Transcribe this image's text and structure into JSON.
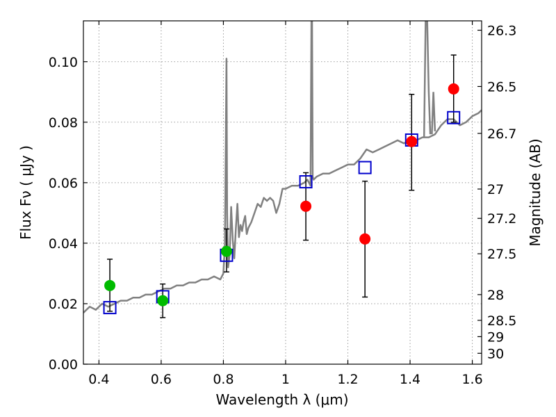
{
  "chart_data": {
    "type": "scatter",
    "xlabel": "Wavelength  λ (μm)",
    "ylabel": "Flux  Fν  ( μJy )",
    "ylabel_right": "Magnitude (AB)",
    "xlim": [
      0.35,
      1.63
    ],
    "ylim": [
      0.0,
      0.1135
    ],
    "grid": true,
    "x_ticks": [
      0.4,
      0.6,
      0.8,
      1.0,
      1.2,
      1.4,
      1.6
    ],
    "x_tick_labels": [
      "0.4",
      "0.6",
      "0.8",
      "1",
      "1.2",
      "1.4",
      "1.6"
    ],
    "y_ticks": [
      0.0,
      0.02,
      0.04,
      0.06,
      0.08,
      0.1
    ],
    "y_tick_labels": [
      "0.00",
      "0.02",
      "0.04",
      "0.06",
      "0.08",
      "0.10"
    ],
    "right_ticks": [
      {
        "label": "26.3",
        "flux": 0.1104
      },
      {
        "label": "26.5",
        "flux": 0.0918
      },
      {
        "label": "26.7",
        "flux": 0.0763
      },
      {
        "label": "27",
        "flux": 0.0579
      },
      {
        "label": "27.2",
        "flux": 0.0482
      },
      {
        "label": "27.5",
        "flux": 0.0365
      },
      {
        "label": "28",
        "flux": 0.023
      },
      {
        "label": "28.5",
        "flux": 0.0145
      },
      {
        "label": "29",
        "flux": 0.0091
      },
      {
        "label": "30",
        "flux": 0.0036
      }
    ],
    "colors": {
      "spectrum": "#808080",
      "model_squares": "#0000cc",
      "observed_red": "#ff0000",
      "observed_green": "#00bb00",
      "errorbar": "#000000",
      "grid": "#999999"
    },
    "spectrum": {
      "x": [
        0.35,
        0.37,
        0.39,
        0.41,
        0.43,
        0.45,
        0.47,
        0.49,
        0.51,
        0.53,
        0.55,
        0.57,
        0.59,
        0.61,
        0.63,
        0.65,
        0.67,
        0.69,
        0.71,
        0.73,
        0.75,
        0.77,
        0.79,
        0.8,
        0.805,
        0.81,
        0.812,
        0.815,
        0.82,
        0.825,
        0.83,
        0.835,
        0.84,
        0.845,
        0.85,
        0.855,
        0.86,
        0.865,
        0.87,
        0.875,
        0.88,
        0.89,
        0.9,
        0.91,
        0.92,
        0.93,
        0.94,
        0.95,
        0.96,
        0.97,
        0.98,
        0.99,
        1.0,
        1.02,
        1.04,
        1.06,
        1.07,
        1.08,
        1.083,
        1.085,
        1.087,
        1.09,
        1.1,
        1.12,
        1.14,
        1.16,
        1.18,
        1.2,
        1.22,
        1.24,
        1.26,
        1.28,
        1.3,
        1.32,
        1.34,
        1.36,
        1.38,
        1.4,
        1.42,
        1.44,
        1.46,
        1.48,
        1.5,
        1.52,
        1.54,
        1.56,
        1.58,
        1.6,
        1.62,
        1.63
      ],
      "y": [
        0.017,
        0.019,
        0.018,
        0.02,
        0.019,
        0.02,
        0.021,
        0.021,
        0.022,
        0.022,
        0.023,
        0.023,
        0.024,
        0.025,
        0.025,
        0.026,
        0.026,
        0.027,
        0.027,
        0.028,
        0.028,
        0.029,
        0.028,
        0.03,
        0.04,
        0.101,
        0.05,
        0.032,
        0.036,
        0.052,
        0.041,
        0.035,
        0.045,
        0.053,
        0.042,
        0.046,
        0.044,
        0.047,
        0.049,
        0.043,
        0.045,
        0.047,
        0.05,
        0.053,
        0.052,
        0.055,
        0.054,
        0.055,
        0.054,
        0.05,
        0.053,
        0.058,
        0.058,
        0.059,
        0.059,
        0.06,
        0.061,
        0.059,
        0.1135,
        0.1135,
        0.062,
        0.061,
        0.062,
        0.063,
        0.063,
        0.064,
        0.065,
        0.066,
        0.066,
        0.068,
        0.071,
        0.07,
        0.071,
        0.072,
        0.073,
        0.074,
        0.073,
        0.074,
        0.074,
        0.075,
        0.075,
        0.076,
        0.079,
        0.081,
        0.081,
        0.079,
        0.08,
        0.082,
        0.083,
        0.084
      ]
    },
    "spectrum_extra_peaks": [
      {
        "x": [
          1.445,
          1.45,
          1.455,
          1.46,
          1.465
        ],
        "y": [
          0.075,
          0.1135,
          0.1135,
          0.09,
          0.076
        ]
      },
      {
        "x": [
          1.47,
          1.475,
          1.48
        ],
        "y": [
          0.076,
          0.09,
          0.077
        ]
      }
    ],
    "model_points": {
      "x": [
        0.435,
        0.605,
        0.81,
        1.065,
        1.255,
        1.405,
        1.54
      ],
      "y": [
        0.0187,
        0.0223,
        0.036,
        0.0603,
        0.065,
        0.0741,
        0.0815
      ]
    },
    "observed_points": [
      {
        "x": 0.435,
        "y": 0.026,
        "err": [
          0.0175,
          0.0347
        ],
        "color": "green"
      },
      {
        "x": 0.605,
        "y": 0.021,
        "err": [
          0.0154,
          0.0265
        ],
        "color": "green"
      },
      {
        "x": 0.81,
        "y": 0.0373,
        "err": [
          0.0305,
          0.0447
        ],
        "color": "green"
      },
      {
        "x": 1.065,
        "y": 0.0522,
        "err": [
          0.041,
          0.0633
        ],
        "color": "red"
      },
      {
        "x": 1.255,
        "y": 0.0414,
        "err": [
          0.0222,
          0.0605
        ],
        "color": "red"
      },
      {
        "x": 1.405,
        "y": 0.0736,
        "err": [
          0.0575,
          0.0892
        ],
        "color": "red"
      },
      {
        "x": 1.54,
        "y": 0.091,
        "err": [
          0.08,
          0.1022
        ],
        "color": "red"
      }
    ]
  }
}
